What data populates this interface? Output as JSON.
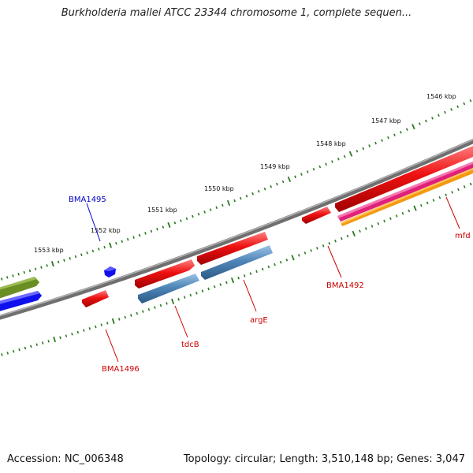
{
  "title": "Burkholderia mallei ATCC 23344 chromosome 1, complete sequen...",
  "footer": {
    "accession": "Accession: NC_006348",
    "summary": "Topology: circular; Length: 3,510,148 bp; Genes: 3,047"
  },
  "scale_labels": [
    "1546 kbp",
    "1547 kbp",
    "1548 kbp",
    "1549 kbp",
    "1550 kbp",
    "1551 kbp",
    "1552 kbp",
    "1553 kbp"
  ],
  "gene_labels": {
    "bma1495": "BMA1495",
    "bma1496": "BMA1496",
    "tdcb": "tdcB",
    "arge": "argE",
    "bma1492": "BMA1492",
    "mfd": "mfd"
  },
  "colors": {
    "backbone": "#808080",
    "tick": "#2a7a1e",
    "gene_red": "#ee1111",
    "gene_steelblue": "#4f86b8",
    "gene_blue": "#1010ee",
    "gene_olive": "#6b8e23",
    "gene_magenta": "#e0207a",
    "gene_orange": "#f39a12",
    "label_red": "#cc0000",
    "label_blue": "#0000cc"
  }
}
